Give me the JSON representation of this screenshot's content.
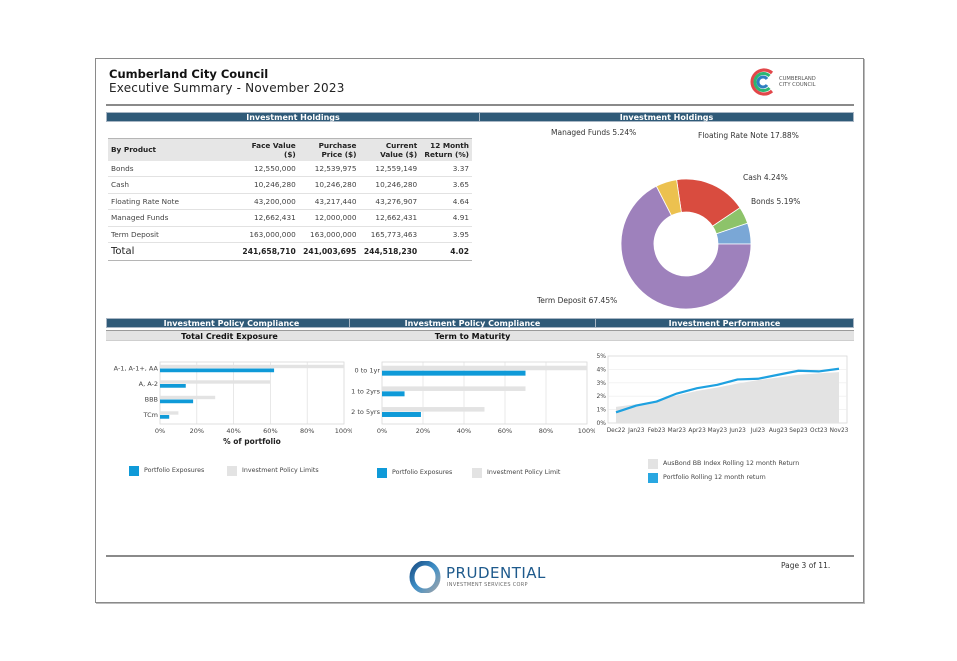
{
  "header": {
    "org_name": "Cumberland City Council",
    "subtitle": "Executive Summary - November 2023",
    "logo_text_line1": "CUMBERLAND",
    "logo_text_line2": "CITY COUNCIL"
  },
  "holdings_section": {
    "table_title": "Investment Holdings",
    "chart_title": "Investment Holdings",
    "columns": [
      "By Product",
      "Face Value ($)",
      "Purchase Price ($)",
      "Current Value ($)",
      "12 Month Return (%)"
    ],
    "column_lines": [
      [
        "By Product"
      ],
      [
        "Face Value",
        "($)"
      ],
      [
        "Purchase",
        "Price ($)"
      ],
      [
        "Current",
        "Value ($)"
      ],
      [
        "12 Month",
        "Return (%)"
      ]
    ],
    "rows": [
      {
        "product": "Bonds",
        "face_value": "12,550,000",
        "purchase_price": "12,539,975",
        "current_value": "12,559,149",
        "return": "3.37"
      },
      {
        "product": "Cash",
        "face_value": "10,246,280",
        "purchase_price": "10,246,280",
        "current_value": "10,246,280",
        "return": "3.65"
      },
      {
        "product": "Floating Rate Note",
        "face_value": "43,200,000",
        "purchase_price": "43,217,440",
        "current_value": "43,276,907",
        "return": "4.64"
      },
      {
        "product": "Managed Funds",
        "face_value": "12,662,431",
        "purchase_price": "12,000,000",
        "current_value": "12,662,431",
        "return": "4.91"
      },
      {
        "product": "Term Deposit",
        "face_value": "163,000,000",
        "purchase_price": "163,000,000",
        "current_value": "165,773,463",
        "return": "3.95"
      }
    ],
    "total": {
      "label": "Total",
      "face_value": "241,658,710",
      "purchase_price": "241,003,695",
      "current_value": "244,518,230",
      "return": "4.02"
    }
  },
  "compliance": {
    "credit_title": "Investment Policy Compliance",
    "credit_subtitle": "Total Credit Exposure",
    "term_title": "Investment Policy Compliance",
    "term_subtitle": "Term to Maturity",
    "performance_title": "Investment Performance"
  },
  "footer": {
    "brand_name": "PRUDENTIAL",
    "brand_tagline": "INVESTMENT SERVICES CORP",
    "page_label": "Page 3 of 11."
  },
  "colors": {
    "section_bar": "#2f5a78",
    "exposure_blue": "#0f9ad8",
    "limit_grey": "#e3e3e3",
    "bonds": "#7aa7d6",
    "cash": "#8dc36a",
    "frn": "#d94c3f",
    "managed_funds": "#ecc14f",
    "term_deposit": "#9e81bc"
  },
  "chart_data": [
    {
      "type": "pie",
      "title": "Investment Holdings",
      "donut": true,
      "slices": [
        {
          "label": "Bonds",
          "value": 5.19,
          "display": "Bonds 5.19%",
          "color": "#7aa7d6"
        },
        {
          "label": "Cash",
          "value": 4.24,
          "display": "Cash 4.24%",
          "color": "#8dc36a"
        },
        {
          "label": "Floating Rate Note",
          "value": 17.88,
          "display": "Floating Rate Note 17.88%",
          "color": "#d94c3f"
        },
        {
          "label": "Managed Funds",
          "value": 5.24,
          "display": "Managed Funds 5.24%",
          "color": "#ecc14f"
        },
        {
          "label": "Term Deposit",
          "value": 67.45,
          "display": "Term Deposit 67.45%",
          "color": "#9e81bc"
        }
      ]
    },
    {
      "type": "bar",
      "orientation": "horizontal",
      "title": "Total Credit Exposure",
      "xlabel": "% of portfolio",
      "categories": [
        "A-1, A-1+, AA",
        "A, A-2",
        "BBB",
        "TCm"
      ],
      "series": [
        {
          "name": "Investment Policy Limits",
          "values": [
            100,
            60,
            30,
            10
          ],
          "color": "#e3e3e3"
        },
        {
          "name": "Portfolio Exposures",
          "values": [
            62,
            14,
            18,
            5
          ],
          "color": "#0f9ad8"
        }
      ],
      "xlim": [
        0,
        100
      ],
      "xticks": [
        "0%",
        "20%",
        "40%",
        "60%",
        "80%",
        "100%"
      ],
      "legend": [
        "Portfolio Exposures",
        "Investment Policy Limits"
      ]
    },
    {
      "type": "bar",
      "orientation": "horizontal",
      "title": "Term to Maturity",
      "xlabel": "",
      "categories": [
        "0 to 1yr",
        "1 to 2yrs",
        "2 to 5yrs"
      ],
      "series": [
        {
          "name": "Investment Policy Limit",
          "values": [
            100,
            70,
            50
          ],
          "color": "#e3e3e3"
        },
        {
          "name": "Portfolio Exposures",
          "values": [
            70,
            11,
            19
          ],
          "color": "#0f9ad8"
        }
      ],
      "xlim": [
        0,
        100
      ],
      "xticks": [
        "0%",
        "20%",
        "40%",
        "60%",
        "80%",
        "100%"
      ],
      "legend": [
        "Portfolio Exposures",
        "Investment Policy Limit"
      ]
    },
    {
      "type": "line",
      "title": "Investment Performance",
      "x": [
        "Dec22",
        "Jan23",
        "Feb23",
        "Mar23",
        "Apr23",
        "May23",
        "Jun23",
        "Jul23",
        "Aug23",
        "Sep23",
        "Oct23",
        "Nov23"
      ],
      "series": [
        {
          "name": "AusBond BB Index Rolling 12 month Return",
          "kind": "area",
          "values": [
            1.2,
            1.4,
            1.65,
            2.05,
            2.4,
            2.65,
            2.95,
            3.2,
            3.4,
            3.6,
            3.7,
            3.8
          ],
          "color": "#e3e3e3"
        },
        {
          "name": "Portfolio Rolling 12 month return",
          "kind": "line",
          "values": [
            0.8,
            1.3,
            1.6,
            2.2,
            2.6,
            2.85,
            3.25,
            3.3,
            3.6,
            3.9,
            3.85,
            4.05
          ],
          "color": "#1ea1e0"
        }
      ],
      "ylim": [
        0,
        5
      ],
      "yticks": [
        "0%",
        "1%",
        "2%",
        "3%",
        "4%",
        "5%"
      ],
      "legend": [
        "AusBond BB Index Rolling 12 month Return",
        "Portfolio Rolling 12 month return"
      ]
    }
  ]
}
